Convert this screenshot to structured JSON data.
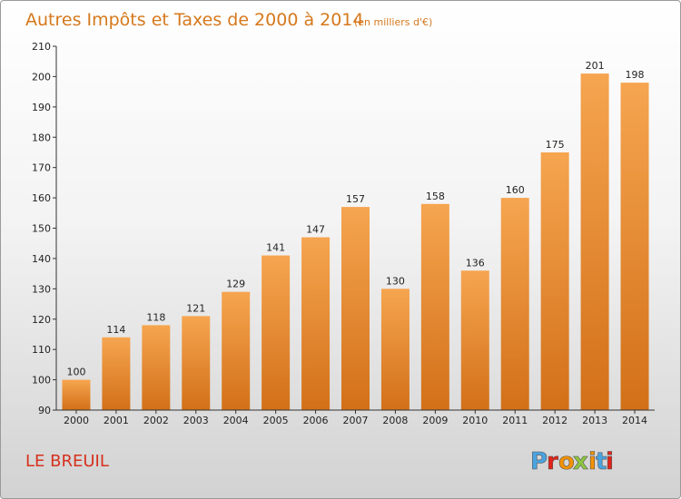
{
  "title": {
    "main": "Autres Impôts et Taxes de 2000 à 2014",
    "sub": "(en milliers d'€)"
  },
  "place_label": "LE BREUIL",
  "logo": {
    "text": "Proxiti",
    "letters": [
      "P",
      "r",
      "o",
      "x",
      "i",
      "t",
      "i"
    ],
    "colors": [
      "#4aa3df",
      "#e2231a",
      "#f39200",
      "#8dc63f",
      "#f39200",
      "#4aa3df",
      "#e2231a"
    ]
  },
  "colors": {
    "bar_top": "#f6a550",
    "bar_bottom": "#d27018",
    "title": "#d6781c",
    "place": "#d6311e"
  },
  "chart_data": {
    "type": "bar",
    "title": "Autres Impôts et Taxes de 2000 à 2014",
    "subtitle": "(en milliers d'€)",
    "categories": [
      "2000",
      "2001",
      "2002",
      "2003",
      "2004",
      "2005",
      "2006",
      "2007",
      "2008",
      "2009",
      "2010",
      "2011",
      "2012",
      "2013",
      "2014"
    ],
    "values": [
      100,
      114,
      118,
      121,
      129,
      141,
      147,
      157,
      130,
      158,
      136,
      160,
      175,
      201,
      198
    ],
    "ylim": [
      90,
      210
    ],
    "yticks": [
      90,
      100,
      110,
      120,
      130,
      140,
      150,
      160,
      170,
      180,
      190,
      200,
      210
    ],
    "xlabel": "",
    "ylabel": "",
    "grid": false,
    "legend": "none"
  }
}
